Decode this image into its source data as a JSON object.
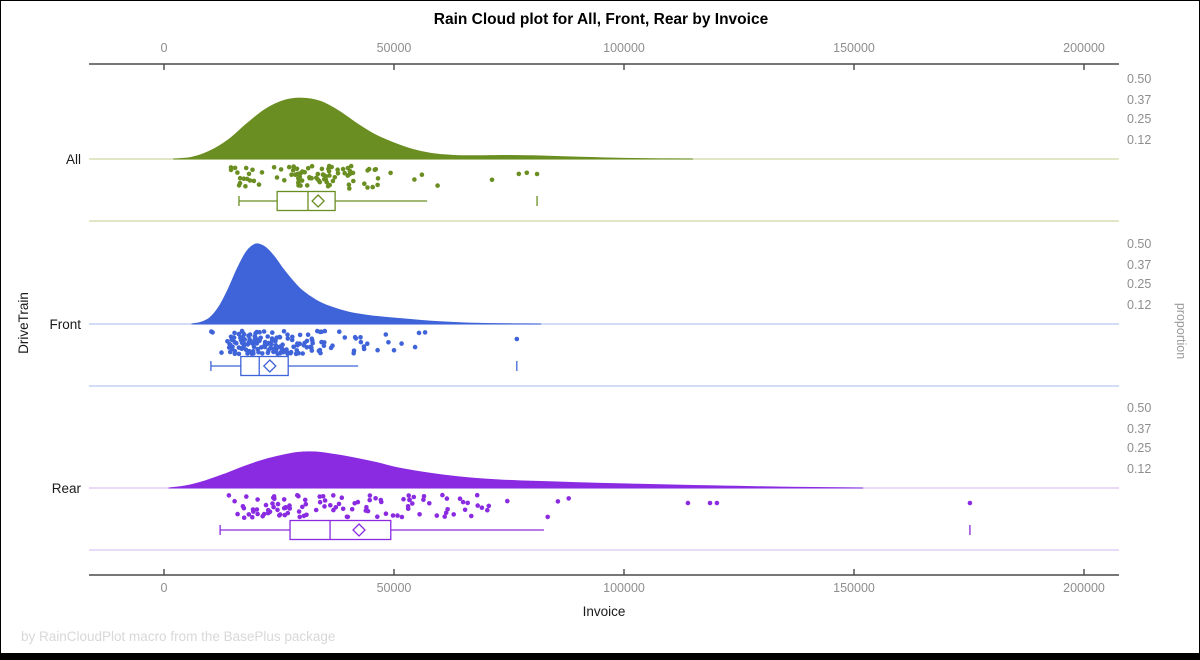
{
  "title": "Rain Cloud plot for All, Front, Rear by Invoice",
  "footer": "by RainCloudPlot macro from the BasePlus package",
  "x_axis": {
    "label": "Invoice",
    "ticks": [
      0,
      50000,
      100000,
      150000,
      200000
    ]
  },
  "y_axis": {
    "label": "DriveTrain",
    "categories": [
      "All",
      "Front",
      "Rear"
    ]
  },
  "proportion_axis": {
    "label": "proportion",
    "ticks": [
      0.5,
      0.37,
      0.25,
      0.12
    ]
  },
  "colors": {
    "all": "#6a8e21",
    "all_light": "#cdd8a4",
    "front": "#3f63d8",
    "front_light": "#b7c7ef",
    "rear": "#8a2be2",
    "rear_light": "#dcc3f2",
    "axis_line": "#4a4a4a",
    "tick_text": "#8e8e8e",
    "footer_text": "#d8d8d8"
  },
  "chart_data": {
    "type": "raincloud",
    "title": "Rain Cloud plot for All, Front, Rear by Invoice",
    "xlabel": "Invoice",
    "ylabel": "DriveTrain",
    "y2label": "proportion",
    "xlim": [
      -16300,
      207600
    ],
    "x_ticks": [
      0,
      50000,
      100000,
      150000,
      200000
    ],
    "proportion_ticks": [
      0.5,
      0.37,
      0.25,
      0.12
    ],
    "grid": false,
    "groups": [
      {
        "name": "All",
        "color": "#6a8e21",
        "light_color": "#cdd8a4",
        "density": [
          [
            2000,
            0
          ],
          [
            6000,
            0.01
          ],
          [
            10000,
            0.05
          ],
          [
            14000,
            0.12
          ],
          [
            18000,
            0.22
          ],
          [
            22000,
            0.31
          ],
          [
            26000,
            0.365
          ],
          [
            30000,
            0.38
          ],
          [
            34000,
            0.36
          ],
          [
            38000,
            0.3
          ],
          [
            42000,
            0.22
          ],
          [
            46000,
            0.15
          ],
          [
            50000,
            0.1
          ],
          [
            54000,
            0.06
          ],
          [
            58000,
            0.035
          ],
          [
            63000,
            0.022
          ],
          [
            68000,
            0.02
          ],
          [
            74000,
            0.022
          ],
          [
            80000,
            0.02
          ],
          [
            86000,
            0.015
          ],
          [
            93000,
            0.009
          ],
          [
            100000,
            0.004
          ],
          [
            108000,
            0.001
          ],
          [
            115000,
            0
          ]
        ],
        "box": {
          "low": 16300,
          "q1": 24600,
          "median": 31300,
          "q3": 37200,
          "high": 57200,
          "mean": 33500
        },
        "far_outliers": [
          81100
        ],
        "outlier_dots": [
          81100
        ],
        "rain": {
          "n": 95,
          "seed": 11,
          "range": [
            13000,
            82000
          ]
        }
      },
      {
        "name": "Front",
        "color": "#3f63d8",
        "light_color": "#b7c7ef",
        "density": [
          [
            6000,
            0
          ],
          [
            8000,
            0.01
          ],
          [
            10000,
            0.04
          ],
          [
            12000,
            0.11
          ],
          [
            14000,
            0.22
          ],
          [
            16000,
            0.35
          ],
          [
            18000,
            0.455
          ],
          [
            20000,
            0.5
          ],
          [
            22000,
            0.48
          ],
          [
            24000,
            0.42
          ],
          [
            26000,
            0.34
          ],
          [
            28000,
            0.27
          ],
          [
            30000,
            0.21
          ],
          [
            33000,
            0.15
          ],
          [
            36000,
            0.11
          ],
          [
            40000,
            0.075
          ],
          [
            44000,
            0.055
          ],
          [
            48000,
            0.042
          ],
          [
            52000,
            0.032
          ],
          [
            56000,
            0.022
          ],
          [
            60000,
            0.014
          ],
          [
            65000,
            0.007
          ],
          [
            70000,
            0.003
          ],
          [
            76000,
            0.001
          ],
          [
            82000,
            0
          ]
        ],
        "box": {
          "low": 10200,
          "q1": 16700,
          "median": 20700,
          "q3": 27000,
          "high": 42200,
          "mean": 23000
        },
        "far_outliers": [
          76700
        ],
        "outlier_dots": [
          76700
        ],
        "rain": {
          "n": 170,
          "seed": 7,
          "range": [
            9500,
            77000
          ]
        }
      },
      {
        "name": "Rear",
        "color": "#8a2be2",
        "light_color": "#dcc3f2",
        "density": [
          [
            1000,
            0
          ],
          [
            5000,
            0.015
          ],
          [
            9000,
            0.045
          ],
          [
            13000,
            0.085
          ],
          [
            17000,
            0.13
          ],
          [
            21000,
            0.17
          ],
          [
            25000,
            0.2
          ],
          [
            29000,
            0.222
          ],
          [
            33000,
            0.225
          ],
          [
            37000,
            0.21
          ],
          [
            41000,
            0.19
          ],
          [
            46000,
            0.16
          ],
          [
            51000,
            0.125
          ],
          [
            56000,
            0.1
          ],
          [
            61000,
            0.08
          ],
          [
            67000,
            0.062
          ],
          [
            73000,
            0.05
          ],
          [
            80000,
            0.042
          ],
          [
            87000,
            0.036
          ],
          [
            94000,
            0.03
          ],
          [
            101000,
            0.025
          ],
          [
            108000,
            0.02
          ],
          [
            115000,
            0.016
          ],
          [
            122000,
            0.012
          ],
          [
            129000,
            0.008
          ],
          [
            136000,
            0.005
          ],
          [
            144000,
            0.002
          ],
          [
            152000,
            0
          ]
        ],
        "box": {
          "low": 12200,
          "q1": 27400,
          "median": 36100,
          "q3": 49300,
          "high": 82600,
          "mean": 42400
        },
        "far_outliers": [
          175200
        ],
        "outlier_dots": [
          113900,
          118700,
          120200,
          175200
        ],
        "rain": {
          "n": 110,
          "seed": 23,
          "range": [
            11000,
            88000
          ]
        }
      }
    ]
  }
}
